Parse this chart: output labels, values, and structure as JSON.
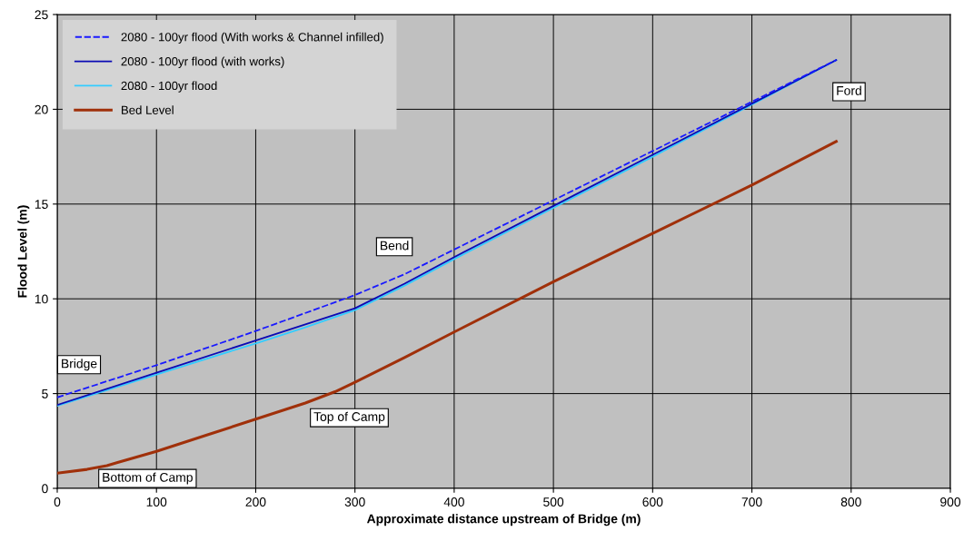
{
  "chart_data": {
    "type": "line",
    "xlabel": "Approximate distance upstream of Bridge (m)",
    "ylabel": "Flood Level (m)",
    "xlim": [
      0,
      900
    ],
    "xticks": [
      0,
      100,
      200,
      300,
      400,
      500,
      600,
      700,
      800,
      900
    ],
    "ylim": [
      0,
      25
    ],
    "yticks": [
      0,
      5,
      10,
      15,
      20,
      25
    ],
    "grid": true,
    "legend": "top left",
    "marker": "none",
    "series": [
      {
        "name": "2080 - 100yr flood (With works & Channel infilled)",
        "color": "#1a1aff",
        "line_style": "dashed",
        "x": [
          0,
          100,
          200,
          300,
          350,
          400,
          500,
          600,
          700,
          785
        ],
        "values": [
          4.8,
          6.5,
          8.3,
          10.2,
          11.3,
          12.6,
          15.2,
          17.8,
          20.4,
          22.6
        ]
      },
      {
        "name": "2080 - 100yr flood (with works)",
        "color": "#0a0ab4",
        "line_style": "solid",
        "x": [
          0,
          100,
          200,
          300,
          350,
          400,
          500,
          600,
          700,
          785
        ],
        "values": [
          4.4,
          6.1,
          7.8,
          9.5,
          10.8,
          12.2,
          14.9,
          17.6,
          20.3,
          22.6
        ]
      },
      {
        "name": "2080 - 100yr flood",
        "color": "#33ccff",
        "line_style": "solid",
        "x": [
          0,
          100,
          200,
          250,
          300,
          350,
          400,
          500,
          600,
          700,
          785
        ],
        "values": [
          4.35,
          6.0,
          7.65,
          8.5,
          9.4,
          10.7,
          12.1,
          14.8,
          17.5,
          20.25,
          22.6
        ]
      },
      {
        "name": "Bed Level",
        "color": "#a0300a",
        "line_style": "solid",
        "x": [
          0,
          30,
          50,
          60,
          100,
          150,
          200,
          250,
          280,
          300,
          350,
          400,
          500,
          600,
          700,
          785
        ],
        "values": [
          0.8,
          1.0,
          1.2,
          1.35,
          1.95,
          2.8,
          3.65,
          4.5,
          5.1,
          5.6,
          6.9,
          8.25,
          10.9,
          13.45,
          16.0,
          18.3
        ]
      }
    ],
    "annotations": [
      "Ford",
      "Bend",
      "Bridge",
      "Top of Camp",
      "Bottom of Camp"
    ]
  }
}
